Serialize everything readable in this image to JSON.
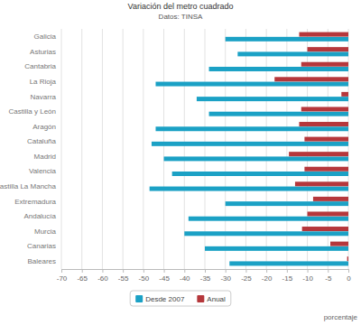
{
  "chart_data": {
    "type": "bar",
    "title": "Variación del metro cuadrado",
    "subtitle": "Datos: TINSA",
    "orientation": "horizontal",
    "grid": true,
    "legend": "bottom",
    "xlabel": "porcentaje",
    "categories": [
      "Galicia",
      "Asturias",
      "Cantabria",
      "La Rioja",
      "Navarra",
      "Castilla y León",
      "Aragón",
      "Cataluña",
      "Madrid",
      "Valencia",
      "Castilla La Mancha",
      "Extremadura",
      "Andalucía",
      "Murcia",
      "Canarias",
      "Baleares"
    ],
    "series": [
      {
        "name": "Desde 2007",
        "color": "#1ba1c5",
        "values": [
          -30,
          -27,
          -34,
          -47,
          -37,
          -34,
          -47,
          -48,
          -45,
          -43,
          -48.5,
          -30,
          -39,
          -40,
          -35,
          -29
        ]
      },
      {
        "name": "Anual",
        "color": "#b5373b",
        "values": [
          -12,
          -10,
          -11.5,
          -18,
          -1.7,
          -11.5,
          -12,
          -10.7,
          -14.5,
          -10.7,
          -13,
          -8.6,
          -10,
          -11.3,
          -4.4,
          -0.3
        ]
      }
    ],
    "xlim": [
      -70,
      0
    ],
    "xticks": [
      -70,
      -65,
      -60,
      -55,
      -50,
      -45,
      -40,
      -35,
      -30,
      -25,
      -20,
      -15,
      -10,
      -5,
      0
    ]
  }
}
